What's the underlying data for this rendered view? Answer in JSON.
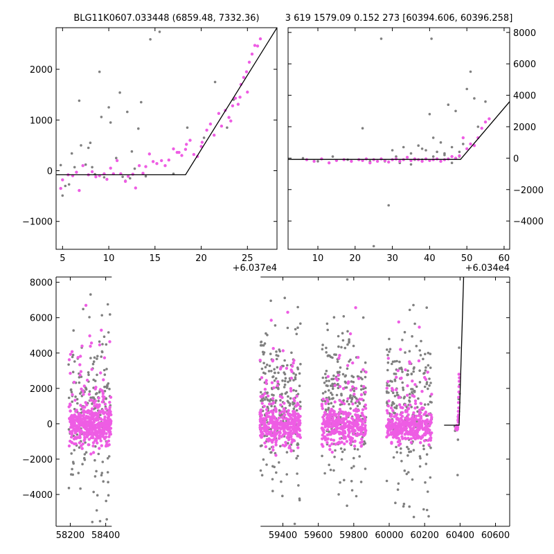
{
  "colors": {
    "gray": "#808080",
    "magenta": "#ee5de4",
    "model": "#000000"
  },
  "chart_data": [
    {
      "type": "scatter",
      "title": "BLG11K0607.033448 (6859.48, 7332.36)",
      "x_offset_label": "+6.037e4",
      "xlim": [
        4.3,
        28.2
      ],
      "ylim": [
        -1550,
        2820
      ],
      "xticks": [
        5,
        10,
        15,
        20,
        25
      ],
      "yticks": [
        -1000,
        0,
        1000,
        2000
      ],
      "series": [
        {
          "color": "gray",
          "points": [
            [
              4.8,
              110
            ],
            [
              5.0,
              -490
            ],
            [
              5.3,
              -300
            ],
            [
              5.7,
              -270
            ],
            [
              6.0,
              340
            ],
            [
              6.3,
              70
            ],
            [
              6.8,
              1380
            ],
            [
              7.0,
              500
            ],
            [
              7.5,
              120
            ],
            [
              7.8,
              450
            ],
            [
              8.0,
              550
            ],
            [
              8.2,
              70
            ],
            [
              8.5,
              -70
            ],
            [
              9.0,
              1950
            ],
            [
              9.2,
              1060
            ],
            [
              9.5,
              -130
            ],
            [
              10.0,
              1250
            ],
            [
              10.2,
              950
            ],
            [
              10.8,
              250
            ],
            [
              11.2,
              1540
            ],
            [
              11.5,
              -120
            ],
            [
              11.8,
              -200
            ],
            [
              12.0,
              1160
            ],
            [
              12.3,
              -150
            ],
            [
              12.5,
              380
            ],
            [
              12.8,
              40
            ],
            [
              13.2,
              830
            ],
            [
              13.5,
              1350
            ],
            [
              14.0,
              -110
            ],
            [
              14.5,
              2590
            ],
            [
              15.5,
              2740
            ],
            [
              17.0,
              -60
            ],
            [
              18.5,
              850
            ],
            [
              20.3,
              650
            ],
            [
              21.5,
              1750
            ],
            [
              22.8,
              850
            ],
            [
              23.5,
              1400
            ]
          ]
        },
        {
          "color": "magenta",
          "points": [
            [
              4.8,
              -350
            ],
            [
              5.0,
              -180
            ],
            [
              5.6,
              -80
            ],
            [
              6.1,
              -100
            ],
            [
              6.5,
              -30
            ],
            [
              6.8,
              -390
            ],
            [
              7.2,
              100
            ],
            [
              7.8,
              -80
            ],
            [
              8.2,
              -20
            ],
            [
              8.6,
              -120
            ],
            [
              9.0,
              -100
            ],
            [
              9.5,
              -60
            ],
            [
              9.8,
              -170
            ],
            [
              10.2,
              50
            ],
            [
              10.5,
              -60
            ],
            [
              10.9,
              200
            ],
            [
              11.3,
              -60
            ],
            [
              11.8,
              -210
            ],
            [
              12.1,
              -110
            ],
            [
              12.6,
              -70
            ],
            [
              12.9,
              -340
            ],
            [
              13.3,
              100
            ],
            [
              13.7,
              -50
            ],
            [
              14.0,
              80
            ],
            [
              14.4,
              330
            ],
            [
              14.8,
              180
            ],
            [
              15.2,
              140
            ],
            [
              15.7,
              200
            ],
            [
              16.1,
              100
            ],
            [
              16.5,
              210
            ],
            [
              17.0,
              430
            ],
            [
              17.4,
              360
            ],
            [
              17.9,
              300
            ],
            [
              18.4,
              520
            ],
            [
              18.8,
              600
            ],
            [
              19.2,
              320
            ],
            [
              19.6,
              280
            ],
            [
              20.1,
              560
            ],
            [
              20.6,
              800
            ],
            [
              21.0,
              920
            ],
            [
              21.4,
              700
            ],
            [
              21.9,
              1130
            ],
            [
              22.2,
              880
            ],
            [
              22.6,
              1190
            ],
            [
              23.0,
              1050
            ],
            [
              23.4,
              1280
            ],
            [
              23.7,
              1430
            ],
            [
              24.0,
              1310
            ],
            [
              24.3,
              1700
            ],
            [
              24.6,
              1840
            ],
            [
              24.9,
              1950
            ],
            [
              25.2,
              2140
            ],
            [
              25.5,
              2300
            ],
            [
              25.8,
              2470
            ],
            [
              26.1,
              2460
            ],
            [
              26.4,
              2600
            ],
            [
              25.0,
              1550
            ],
            [
              24.2,
              1450
            ],
            [
              23.2,
              980
            ],
            [
              20.0,
              480
            ],
            [
              18.3,
              420
            ],
            [
              17.6,
              360
            ]
          ]
        }
      ],
      "model_line": [
        [
          4.3,
          -80
        ],
        [
          18.3,
          -80
        ],
        [
          28.2,
          2820
        ]
      ]
    },
    {
      "type": "scatter",
      "title": "3 619 1579.09 0.152 273 [60394.606, 60396.258]",
      "x_offset_label": "+6.034e4",
      "xlim": [
        2,
        61.5
      ],
      "ylim": [
        -5800,
        8300
      ],
      "xticks": [
        10,
        20,
        30,
        40,
        50,
        60
      ],
      "yticks": [
        -4000,
        -2000,
        0,
        2000,
        4000,
        6000,
        8000
      ],
      "series": [
        {
          "color": "gray",
          "points": [
            [
              6,
              0
            ],
            [
              10,
              -200
            ],
            [
              14,
              100
            ],
            [
              18,
              -100
            ],
            [
              22,
              1900
            ],
            [
              24,
              -200
            ],
            [
              25,
              -5600
            ],
            [
              27,
              7600
            ],
            [
              29,
              -3000
            ],
            [
              30,
              500
            ],
            [
              32,
              -300
            ],
            [
              33,
              700
            ],
            [
              35,
              300
            ],
            [
              36,
              -100
            ],
            [
              37,
              800
            ],
            [
              38,
              600
            ],
            [
              39,
              500
            ],
            [
              40,
              2800
            ],
            [
              40.5,
              7600
            ],
            [
              41,
              1300
            ],
            [
              42,
              400
            ],
            [
              43,
              1000
            ],
            [
              44,
              300
            ],
            [
              45,
              3400
            ],
            [
              46,
              700
            ],
            [
              47,
              3000
            ],
            [
              48,
              400
            ],
            [
              49,
              900
            ],
            [
              50,
              4400
            ],
            [
              51,
              5500
            ],
            [
              52,
              3800
            ],
            [
              53,
              2000
            ],
            [
              55,
              3600
            ],
            [
              56,
              2500
            ],
            [
              35,
              -400
            ],
            [
              31,
              100
            ],
            [
              28,
              -200
            ],
            [
              44,
              200
            ],
            [
              46,
              -300
            ],
            [
              48,
              100
            ],
            [
              41,
              100
            ],
            [
              38,
              -100
            ]
          ]
        },
        {
          "color": "magenta",
          "points": [
            [
              7,
              -100
            ],
            [
              9,
              -200
            ],
            [
              11,
              -50
            ],
            [
              13,
              -300
            ],
            [
              15,
              -150
            ],
            [
              17,
              -100
            ],
            [
              19,
              -200
            ],
            [
              21,
              -100
            ],
            [
              22,
              -150
            ],
            [
              23,
              -50
            ],
            [
              24,
              -300
            ],
            [
              25,
              -100
            ],
            [
              26,
              -200
            ],
            [
              27,
              -50
            ],
            [
              28,
              -150
            ],
            [
              29,
              -250
            ],
            [
              30,
              -100
            ],
            [
              31,
              -50
            ],
            [
              32,
              -200
            ],
            [
              33,
              -100
            ],
            [
              34,
              50
            ],
            [
              35,
              -150
            ],
            [
              36,
              -50
            ],
            [
              37,
              -100
            ],
            [
              38,
              -200
            ],
            [
              39,
              -50
            ],
            [
              40,
              -150
            ],
            [
              41,
              -100
            ],
            [
              42,
              -50
            ],
            [
              43,
              -200
            ],
            [
              44,
              -100
            ],
            [
              45,
              -50
            ],
            [
              46,
              100
            ],
            [
              47,
              0
            ],
            [
              48,
              150
            ],
            [
              49,
              1300
            ],
            [
              50,
              600
            ],
            [
              51,
              900
            ],
            [
              52,
              800
            ],
            [
              53,
              1300
            ],
            [
              54,
              1900
            ],
            [
              55,
              2300
            ],
            [
              56,
              2500
            ]
          ]
        }
      ],
      "model_line": [
        [
          2,
          -80
        ],
        [
          48.3,
          -80
        ],
        [
          61.5,
          3600
        ]
      ]
    },
    {
      "type": "scatter",
      "title": "",
      "xlim": [
        58120,
        60680
      ],
      "ylim": [
        -5800,
        8300
      ],
      "xticks": [
        58200,
        58400,
        59400,
        59600,
        59800,
        60000,
        60200,
        60400,
        60600
      ],
      "yticks": [
        -4000,
        -2000,
        0,
        2000,
        4000,
        6000,
        8000
      ],
      "x_break": [
        58430,
        59270
      ],
      "seasons": [
        {
          "start": 58190,
          "end": 58430,
          "sd": 520,
          "n_gray": 180,
          "n_mag": 460
        },
        {
          "start": 59270,
          "end": 59500,
          "sd": 520,
          "n_gray": 260,
          "n_mag": 380
        },
        {
          "start": 59620,
          "end": 59870,
          "sd": 520,
          "n_gray": 240,
          "n_mag": 320
        },
        {
          "start": 59985,
          "end": 60240,
          "sd": 450,
          "n_gray": 230,
          "n_mag": 360
        }
      ],
      "rise_points": [
        [
          60375,
          -300
        ],
        [
          60378,
          -200
        ],
        [
          60380,
          -250
        ],
        [
          60382,
          -150
        ],
        [
          60385,
          -100
        ],
        [
          60387,
          -200
        ],
        [
          60388,
          200
        ],
        [
          60389,
          400
        ],
        [
          60390,
          700
        ],
        [
          60391,
          1200
        ],
        [
          60392,
          1500
        ],
        [
          60393,
          1800
        ],
        [
          60394,
          2100
        ],
        [
          60395,
          2400
        ],
        [
          60396,
          2600
        ],
        [
          60393.5,
          2800
        ],
        [
          60392.5,
          900
        ],
        [
          60391.5,
          500
        ],
        [
          60390.5,
          300
        ],
        [
          60389.5,
          100
        ],
        [
          60386,
          -300
        ],
        [
          60383,
          -350
        ],
        [
          60381,
          -100
        ]
      ],
      "rise_gray": [
        [
          60370,
          -150
        ],
        [
          60372,
          -400
        ],
        [
          60386,
          -2900
        ],
        [
          60388,
          -900
        ],
        [
          60394,
          700
        ],
        [
          60396,
          1200
        ],
        [
          60397,
          2200
        ],
        [
          60398,
          1700
        ],
        [
          60394.5,
          4300
        ],
        [
          60392,
          1400
        ]
      ],
      "model_line": [
        [
          60310,
          -80
        ],
        [
          60394.5,
          -80
        ],
        [
          60420,
          8300
        ]
      ]
    }
  ]
}
